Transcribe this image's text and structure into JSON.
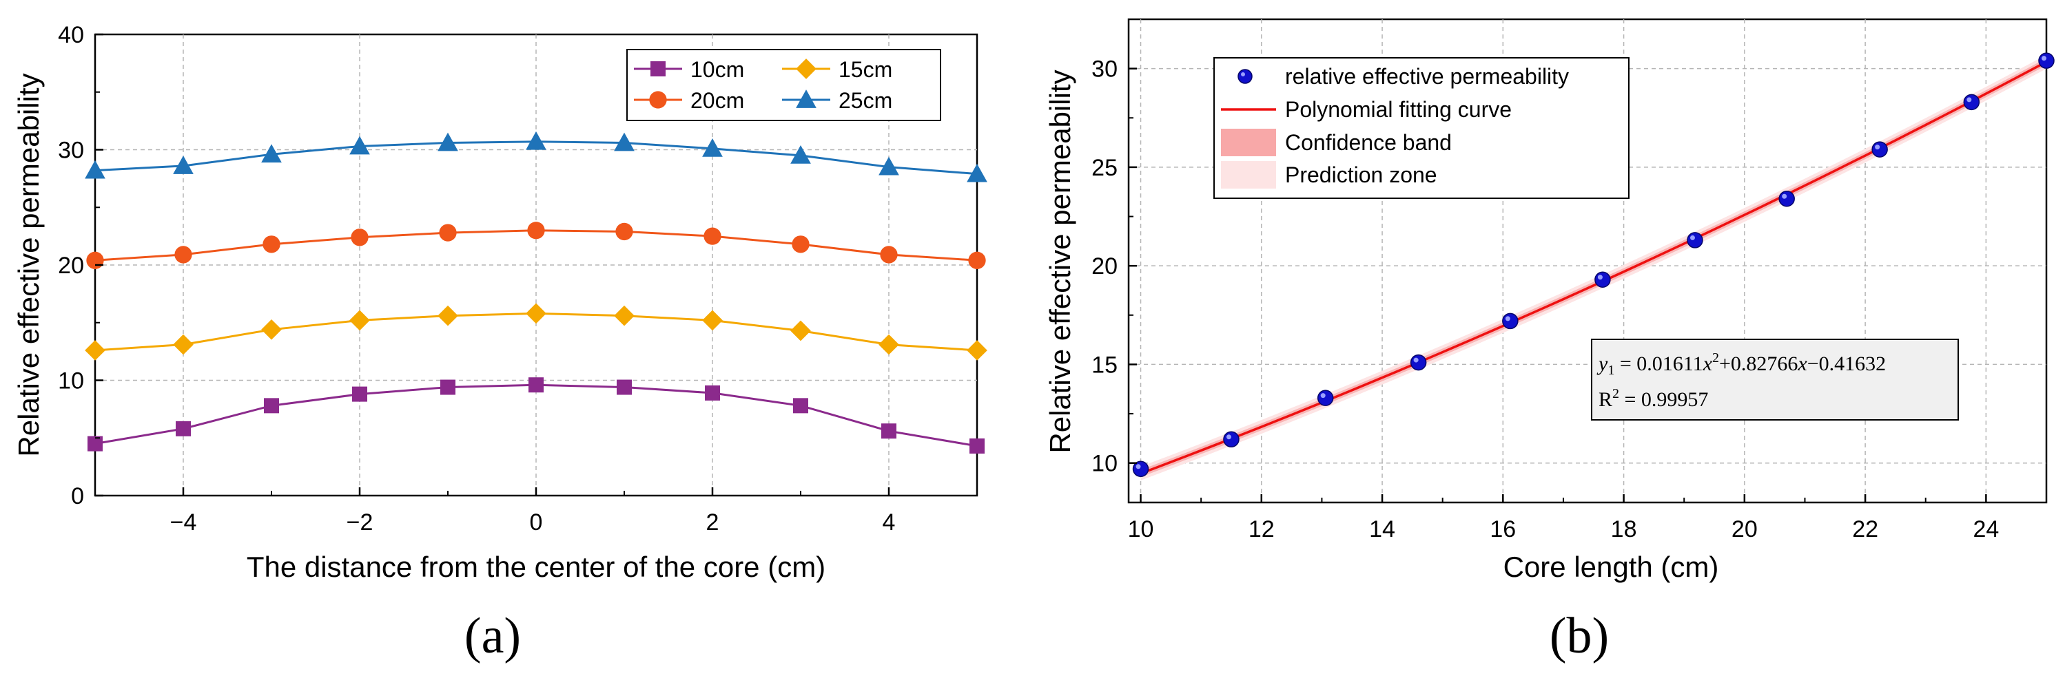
{
  "chart_data": [
    {
      "panel": "(a)",
      "type": "line",
      "xlabel": "The distance from the center of the core (cm)",
      "ylabel": "Relative effective permeability",
      "xlim": [
        -5,
        5
      ],
      "ylim": [
        0,
        40
      ],
      "xticks": [
        -4,
        -2,
        0,
        2,
        4
      ],
      "xtick_labels": [
        "−4",
        "−2",
        "0",
        "2",
        "4"
      ],
      "yticks": [
        0,
        10,
        20,
        30,
        40
      ],
      "ytick_labels": [
        "0",
        "10",
        "20",
        "30",
        "40"
      ],
      "grid": true,
      "legend_position": "top-right",
      "x": [
        -5,
        -4,
        -3,
        -2,
        -1,
        0,
        1,
        2,
        3,
        4,
        5
      ],
      "series": [
        {
          "name": "10cm",
          "color": "#8B2A8C",
          "marker": "square",
          "values": [
            4.5,
            5.8,
            7.8,
            8.8,
            9.4,
            9.6,
            9.4,
            8.9,
            7.8,
            5.6,
            4.3
          ]
        },
        {
          "name": "15cm",
          "color": "#F5A800",
          "marker": "diamond",
          "values": [
            12.6,
            13.1,
            14.4,
            15.2,
            15.6,
            15.8,
            15.6,
            15.2,
            14.3,
            13.1,
            12.6
          ]
        },
        {
          "name": "20cm",
          "color": "#F0561A",
          "marker": "circle",
          "values": [
            20.4,
            20.9,
            21.8,
            22.4,
            22.8,
            23.0,
            22.9,
            22.5,
            21.8,
            20.9,
            20.4
          ]
        },
        {
          "name": "25cm",
          "color": "#1F73B8",
          "marker": "triangle",
          "values": [
            28.2,
            28.6,
            29.6,
            30.3,
            30.6,
            30.7,
            30.6,
            30.1,
            29.5,
            28.5,
            27.9
          ]
        }
      ]
    },
    {
      "panel": "(b)",
      "type": "scatter",
      "xlabel": "Core length (cm)",
      "ylabel": "Relative effective permeability",
      "xlim": [
        9.8,
        25
      ],
      "ylim": [
        8,
        32.5
      ],
      "xticks": [
        10,
        12,
        14,
        16,
        18,
        20,
        22,
        24
      ],
      "xtick_labels": [
        "10",
        "12",
        "14",
        "16",
        "18",
        "20",
        "22",
        "24"
      ],
      "yticks": [
        10,
        15,
        20,
        25,
        30
      ],
      "ytick_labels": [
        "10",
        "15",
        "20",
        "25",
        "30"
      ],
      "grid": true,
      "legend_position": "top-left",
      "legend": [
        "relative effective permeability",
        "Polynomial fitting curve",
        "Confidence band",
        "Prediction zone"
      ],
      "points": {
        "name": "relative effective permeability",
        "color": "#1010CC",
        "x": [
          10,
          11.5,
          13.06,
          14.6,
          16.12,
          17.65,
          19.18,
          20.7,
          22.24,
          23.76,
          25
        ],
        "y": [
          9.7,
          11.2,
          13.3,
          15.1,
          17.2,
          19.3,
          21.3,
          23.4,
          25.9,
          28.3,
          30.4
        ]
      },
      "fit": {
        "name": "Polynomial fitting curve",
        "color": "#EE1111",
        "a": 0.01611,
        "b": 0.82766,
        "c": -0.41632
      },
      "equation": {
        "prefix": "y",
        "subscript": "1",
        "rhs_part1": " = 0.01611",
        "var1": "x",
        "sup1": "2",
        "rhs_part2": "+0.82766",
        "var2": "x",
        "rhs_part3": "−0.41632",
        "r2_label": "R",
        "r2_sup": "2",
        "r2_value": " = 0.99957"
      }
    }
  ]
}
